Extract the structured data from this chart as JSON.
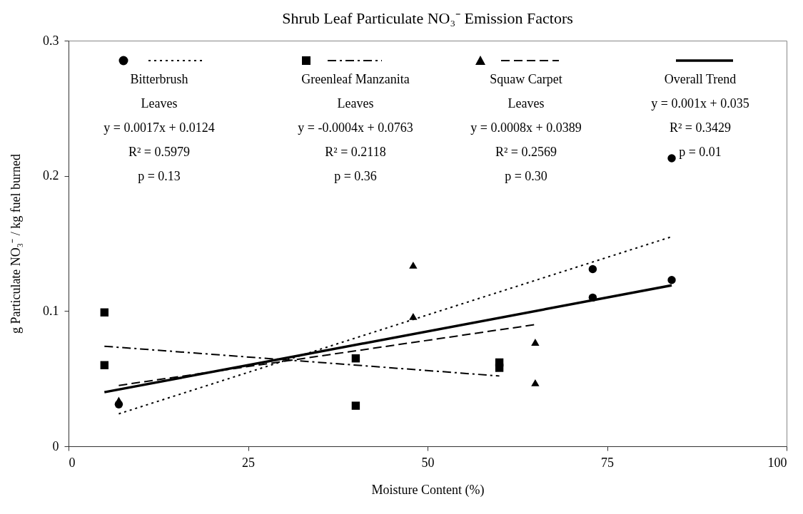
{
  "chart_data": {
    "type": "scatter",
    "title": "Shrub Leaf Particulate NO₃⁻ Emission Factors",
    "xlabel": "Moisture Content (%)",
    "ylabel": "g Particulate NO₃⁻ / kg fuel burned",
    "xlim": [
      0,
      100
    ],
    "xticks": [
      0,
      25,
      50,
      75,
      100
    ],
    "ylim": [
      0,
      0.3
    ],
    "yticks": [
      0,
      0.1,
      0.2,
      0.3
    ],
    "grid": false,
    "legend": "top",
    "series": [
      {
        "name": "Bitterbrush Leaves",
        "type": "scatter",
        "marker": "circle",
        "color": "#000000",
        "x": [
          7,
          73,
          73,
          84,
          84
        ],
        "values": [
          0.031,
          0.131,
          0.11,
          0.213,
          0.123
        ]
      },
      {
        "name": "Greenleaf Manzanita Leaves",
        "type": "scatter",
        "marker": "square",
        "color": "#000000",
        "x": [
          5,
          5,
          40,
          40,
          60,
          60
        ],
        "values": [
          0.099,
          0.06,
          0.065,
          0.03,
          0.062,
          0.058
        ]
      },
      {
        "name": "Squaw Carpet Leaves",
        "type": "scatter",
        "marker": "triangle",
        "color": "#000000",
        "x": [
          7,
          48,
          48,
          65,
          65
        ],
        "values": [
          0.034,
          0.134,
          0.096,
          0.077,
          0.047
        ]
      },
      {
        "type": "line",
        "line_style": "dotted",
        "color": "#000000",
        "x": [
          7,
          84
        ],
        "values": [
          0.024,
          0.155
        ]
      },
      {
        "type": "line",
        "line_style": "dashdot",
        "color": "#000000",
        "x": [
          5,
          60
        ],
        "values": [
          0.074,
          0.052
        ]
      },
      {
        "type": "line",
        "line_style": "dashed",
        "color": "#000000",
        "x": [
          7,
          65
        ],
        "values": [
          0.045,
          0.09
        ]
      },
      {
        "name": "Overall Trend",
        "type": "line",
        "line_style": "solid",
        "color": "#000000",
        "x": [
          5,
          84
        ],
        "values": [
          0.04,
          0.119
        ]
      }
    ],
    "annotations": [
      "y = 0.0017x + 0.0124",
      "R² = 0.5979",
      "p = 0.13",
      "y = -0.0004x + 0.0763",
      "R² = 0.2118",
      "p = 0.36",
      "y = 0.0008x + 0.0389",
      "R² = 0.2569",
      "p = 0.30",
      "y = 0.001x + 0.035",
      "R² = 0.3429",
      "p = 0.01"
    ]
  }
}
